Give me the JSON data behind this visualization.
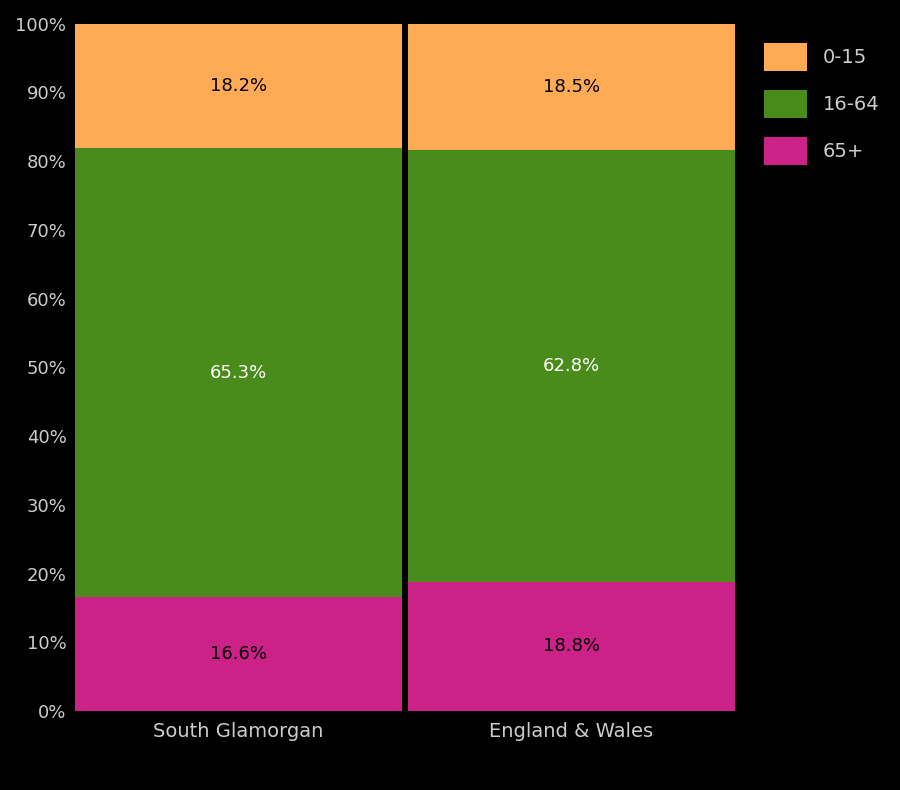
{
  "categories": [
    "South Glamorgan",
    "England & Wales"
  ],
  "segments": {
    "65+": [
      16.6,
      18.8
    ],
    "16-64": [
      65.3,
      62.8
    ],
    "0-15": [
      18.2,
      18.5
    ]
  },
  "colors": {
    "0-15": "#FFAA55",
    "16-64": "#4A8C1C",
    "65+": "#CC2288"
  },
  "text_colors": {
    "0-15": "#000000",
    "16-64": "#FFFFFF",
    "65+": "#000000"
  },
  "background_color": "#000000",
  "tick_label_color": "#CCCCCC",
  "legend_text_color": "#CCCCCC",
  "bar_width": 0.98,
  "ylim": [
    0,
    100
  ],
  "yticks": [
    0,
    10,
    20,
    30,
    40,
    50,
    60,
    70,
    80,
    90,
    100
  ],
  "ytick_labels": [
    "0%",
    "10%",
    "20%",
    "30%",
    "40%",
    "50%",
    "60%",
    "70%",
    "80%",
    "90%",
    "100%"
  ]
}
